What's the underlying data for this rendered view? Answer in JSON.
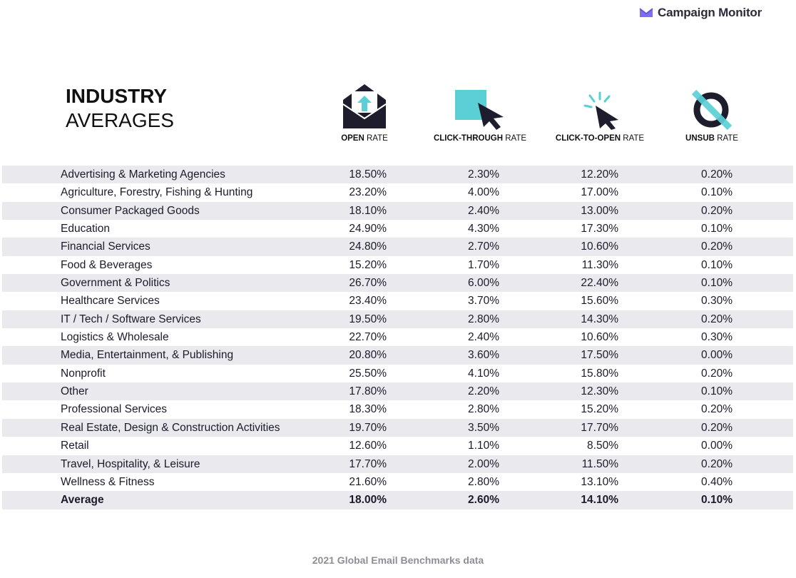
{
  "brand": {
    "name": "Campaign Monitor",
    "icon": "campaign-monitor-envelope-logo",
    "color": "#7b6ff0"
  },
  "title": {
    "line1": "INDUSTRY",
    "line2": "AVERAGES"
  },
  "columns": [
    {
      "bold": "OPEN",
      "rest": " RATE",
      "icon": "open-envelope-icon"
    },
    {
      "bold": "CLICK-THROUGH",
      "rest": " RATE",
      "icon": "cursor-click-box-icon"
    },
    {
      "bold": "CLICK-TO-OPEN",
      "rest": " RATE",
      "icon": "cursor-sparkle-icon"
    },
    {
      "bold": "UNSUB",
      "rest": " RATE",
      "icon": "unsubscribe-circle-slash-icon"
    }
  ],
  "colors": {
    "teal": "#5bcfd6",
    "navy": "#1d1d2e",
    "row_shade": "#e9e9ee",
    "footer": "#8d8f95"
  },
  "chart_data": {
    "type": "table",
    "title": "INDUSTRY AVERAGES",
    "columns": [
      "OPEN RATE",
      "CLICK-THROUGH RATE",
      "CLICK-TO-OPEN RATE",
      "UNSUB RATE"
    ],
    "rows": [
      [
        "Advertising & Marketing Agencies",
        "18.50%",
        "2.30%",
        "12.20%",
        "0.20%"
      ],
      [
        "Agriculture, Forestry, Fishing & Hunting",
        "23.20%",
        "4.00%",
        "17.00%",
        "0.10%"
      ],
      [
        "Consumer Packaged Goods",
        "18.10%",
        "2.40%",
        "13.00%",
        "0.20%"
      ],
      [
        "Education",
        "24.90%",
        "4.30%",
        "17.30%",
        "0.10%"
      ],
      [
        "Financial Services",
        "24.80%",
        "2.70%",
        "10.60%",
        "0.20%"
      ],
      [
        "Food & Beverages",
        "15.20%",
        "1.70%",
        "11.30%",
        "0.10%"
      ],
      [
        "Government & Politics",
        "26.70%",
        "6.00%",
        "22.40%",
        "0.10%"
      ],
      [
        "Healthcare Services",
        "23.40%",
        "3.70%",
        "15.60%",
        "0.30%"
      ],
      [
        "IT / Tech / Software Services",
        "19.50%",
        "2.80%",
        "14.30%",
        "0.20%"
      ],
      [
        "Logistics & Wholesale",
        "22.70%",
        "2.40%",
        "10.60%",
        "0.30%"
      ],
      [
        "Media, Entertainment, & Publishing",
        "20.80%",
        "3.60%",
        "17.50%",
        "0.00%"
      ],
      [
        "Nonprofit",
        "25.50%",
        "4.10%",
        "15.80%",
        "0.20%"
      ],
      [
        "Other",
        "17.80%",
        "2.20%",
        "12.30%",
        "0.10%"
      ],
      [
        "Professional Services",
        "18.30%",
        "2.80%",
        "15.20%",
        "0.20%"
      ],
      [
        "Real Estate, Design & Construction Activities",
        "19.70%",
        "3.50%",
        "17.70%",
        "0.20%"
      ],
      [
        "Retail",
        "12.60%",
        "1.10%",
        "8.50%",
        "0.00%"
      ],
      [
        "Travel, Hospitality, & Leisure",
        "17.70%",
        "2.00%",
        "11.50%",
        "0.20%"
      ],
      [
        "Wellness & Fitness",
        "21.60%",
        "2.80%",
        "13.10%",
        "0.40%"
      ]
    ],
    "average": [
      "Average",
      "18.00%",
      "2.60%",
      "14.10%",
      "0.10%"
    ]
  },
  "footer": "2021 Global Email Benchmarks data"
}
